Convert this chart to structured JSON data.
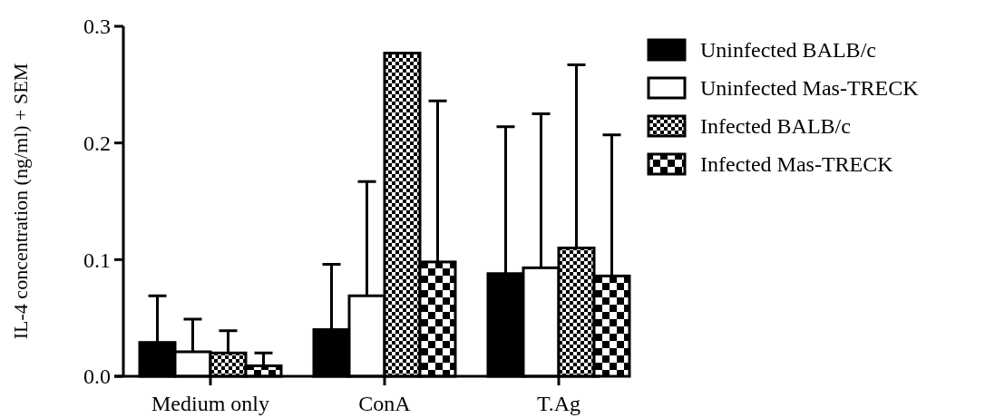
{
  "chart_data": {
    "type": "bar",
    "ylabel": "IL-4 concentration (ng/ml) + SEM",
    "categories": [
      "Medium only",
      "ConA",
      "T.Ag"
    ],
    "series": [
      {
        "name": "Uninfected BALB/c",
        "color": "#000000",
        "values": [
          0.029,
          0.04,
          0.088
        ],
        "errors": [
          [
            0.029,
            0.069
          ],
          [
            0.04,
            0.096
          ],
          [
            0.088,
            0.214
          ]
        ]
      },
      {
        "name": "Uninfected Mas-TRECK",
        "color": "#ffffff",
        "values": [
          0.021,
          0.069,
          0.093
        ],
        "errors": [
          [
            0.021,
            0.049
          ],
          [
            0.069,
            0.167
          ],
          [
            0.093,
            0.225
          ]
        ]
      },
      {
        "name": "Infected BALB/c",
        "color": "#000000",
        "values": [
          0.02,
          0.277,
          0.11
        ],
        "errors": [
          [
            0.02,
            0.039
          ],
          null,
          [
            0.11,
            0.267
          ]
        ]
      },
      {
        "name": "Infected Mas-TRECK",
        "color": "#000000",
        "values": [
          0.009,
          0.098,
          0.086
        ],
        "errors": [
          [
            0.009,
            0.02
          ],
          [
            0.098,
            0.236
          ],
          [
            0.086,
            0.207
          ]
        ]
      }
    ],
    "ylim": [
      0,
      0.3
    ],
    "yticks": [
      {
        "value": 0,
        "label": "0.0"
      },
      0.1,
      0.2,
      0.3
    ],
    "legend": "top right"
  }
}
